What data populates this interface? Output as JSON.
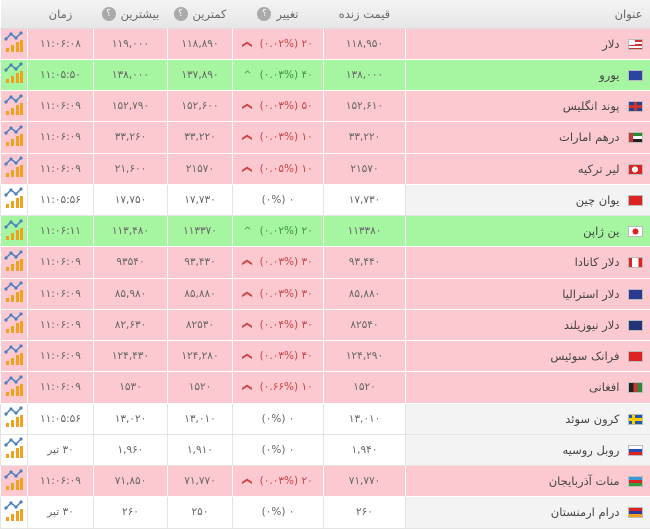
{
  "header": {
    "title": "عنوان",
    "live": "قیمت زنده",
    "change": "تغییر",
    "min": "کمترین",
    "max": "بیشترین",
    "time": "زمان",
    "help": "؟"
  },
  "colors": {
    "down_row": "#fdc9d0",
    "up_row": "#a6f5a1",
    "down_text": "#cc4444",
    "up_text": "#3a9a3a"
  },
  "rows": [
    {
      "name": "دلار",
      "flag": "us",
      "live": "۱۱۸,۹۵۰",
      "change": "۲۰ (۰.۰۲%)",
      "dir": "down",
      "min": "۱۱۸,۸۹۰",
      "max": "۱۱۹,۰۰۰",
      "time": "۱۱:۰۶:۰۸"
    },
    {
      "name": "یورو",
      "flag": "eu",
      "live": "۱۳۸,۰۰۰",
      "change": "۴۰ (۰.۰۳%)",
      "dir": "up",
      "min": "۱۳۷,۸۹۰",
      "max": "۱۳۸,۰۰۰",
      "time": "۱۱:۰۵:۵۰"
    },
    {
      "name": "پوند انگلیس",
      "flag": "gb",
      "live": "۱۵۲,۶۱۰",
      "change": "۵۰ (۰.۰۳%)",
      "dir": "down",
      "min": "۱۵۲,۶۰۰",
      "max": "۱۵۲,۷۹۰",
      "time": "۱۱:۰۶:۰۹"
    },
    {
      "name": "درهم امارات",
      "flag": "ae",
      "live": "۳۳,۲۲۰",
      "change": "۱۰ (۰.۰۳%)",
      "dir": "down",
      "min": "۳۳,۲۲۰",
      "max": "۳۳,۲۶۰",
      "time": "۱۱:۰۶:۰۹"
    },
    {
      "name": "لیر ترکیه",
      "flag": "tr",
      "live": "۲۱۵۷۰",
      "change": "۱۰ (۰.۰۵%)",
      "dir": "down",
      "min": "۲۱۵۷۰",
      "max": "۲۱,۶۰۰",
      "time": "۱۱:۰۶:۰۹"
    },
    {
      "name": "یوان چین",
      "flag": "cn",
      "live": "۱۷,۷۳۰",
      "change": "۰ (۰%)",
      "dir": "flat",
      "min": "۱۷,۷۳۰",
      "max": "۱۷,۷۵۰",
      "time": "۱۱:۰۵:۵۶"
    },
    {
      "name": "ین ژاپن",
      "flag": "jp",
      "live": "۱۱۳۳۸۰",
      "change": "۲۰ (۰.۰۲%)",
      "dir": "up",
      "min": "۱۱۳۳۷۰",
      "max": "۱۱۳,۴۸۰",
      "time": "۱۱:۰۶:۱۱"
    },
    {
      "name": "دلار کانادا",
      "flag": "ca",
      "live": "۹۳,۴۴۰",
      "change": "۳۰ (۰.۰۳%)",
      "dir": "down",
      "min": "۹۳,۴۳۰",
      "max": "۹۳۵۴۰",
      "time": "۱۱:۰۶:۰۹"
    },
    {
      "name": "دلار استرالیا",
      "flag": "au",
      "live": "۸۵,۸۸۰",
      "change": "۳۰ (۰.۰۳%)",
      "dir": "down",
      "min": "۸۵,۸۸۰",
      "max": "۸۵,۹۸۰",
      "time": "۱۱:۰۶:۰۹"
    },
    {
      "name": "دلار نیوزیلند",
      "flag": "nz",
      "live": "۸۲۵۴۰",
      "change": "۳۰ (۰.۰۴%)",
      "dir": "down",
      "min": "۸۲۵۳۰",
      "max": "۸۲,۶۳۰",
      "time": "۱۱:۰۶:۰۹"
    },
    {
      "name": "فرانک سوئیس",
      "flag": "ch",
      "live": "۱۲۴,۲۹۰",
      "change": "۴۰ (۰.۰۳%)",
      "dir": "down",
      "min": "۱۲۴,۲۸۰",
      "max": "۱۲۴,۴۳۰",
      "time": "۱۱:۰۶:۰۹"
    },
    {
      "name": "افغانی",
      "flag": "af",
      "live": "۱۵۲۰",
      "change": "۱۰ (۰.۶۶%)",
      "dir": "down",
      "min": "۱۵۲۰",
      "max": "۱۵۳۰",
      "time": "۱۱:۰۶:۰۹"
    },
    {
      "name": "کرون سوئد",
      "flag": "se",
      "live": "۱۳,۰۱۰",
      "change": "۰ (۰%)",
      "dir": "flat",
      "min": "۱۳,۰۱۰",
      "max": "۱۳,۰۲۰",
      "time": "۱۱:۰۵:۵۶"
    },
    {
      "name": "روبل روسیه",
      "flag": "ru",
      "live": "۱,۹۴۰",
      "change": "۰ (۰%)",
      "dir": "flat",
      "min": "۱,۹۱۰",
      "max": "۱,۹۶۰",
      "time": "۳۰ تیر"
    },
    {
      "name": "منات آذربایجان",
      "flag": "az",
      "live": "۷۱,۷۷۰",
      "change": "۲۰ (۰.۰۳%)",
      "dir": "down",
      "min": "۷۱,۷۷۰",
      "max": "۷۱,۸۵۰",
      "time": "۱۱:۰۶:۰۹"
    },
    {
      "name": "درام ارمنستان",
      "flag": "am",
      "live": "۲۶۰",
      "change": "۰ (۰%)",
      "dir": "flat",
      "min": "۲۵۰",
      "max": "۲۶۰",
      "time": "۳۰ تیر"
    }
  ]
}
